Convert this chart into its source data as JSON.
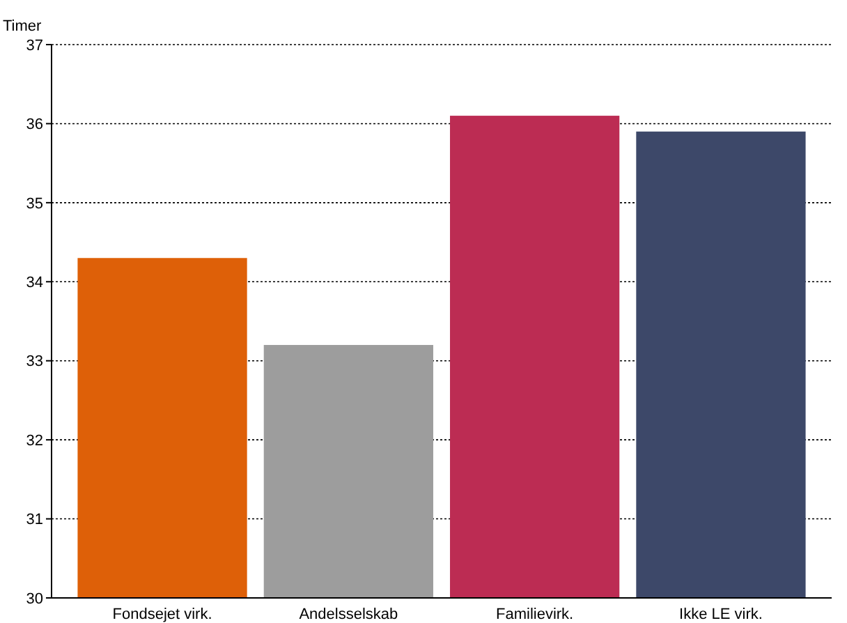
{
  "chart_data": {
    "type": "bar",
    "ylabel": "Timer",
    "categories": [
      "Fondsejet virk.",
      "Andelsselskab",
      "Familievirk.",
      "Ikke LE virk."
    ],
    "values": [
      34.3,
      33.2,
      36.1,
      35.9
    ],
    "colors": [
      "#de6008",
      "#9d9d9d",
      "#bc2c53",
      "#3d4869"
    ],
    "ylim": [
      30,
      37
    ],
    "yticks": [
      30,
      31,
      32,
      33,
      34,
      35,
      36,
      37
    ],
    "grid": "y"
  }
}
